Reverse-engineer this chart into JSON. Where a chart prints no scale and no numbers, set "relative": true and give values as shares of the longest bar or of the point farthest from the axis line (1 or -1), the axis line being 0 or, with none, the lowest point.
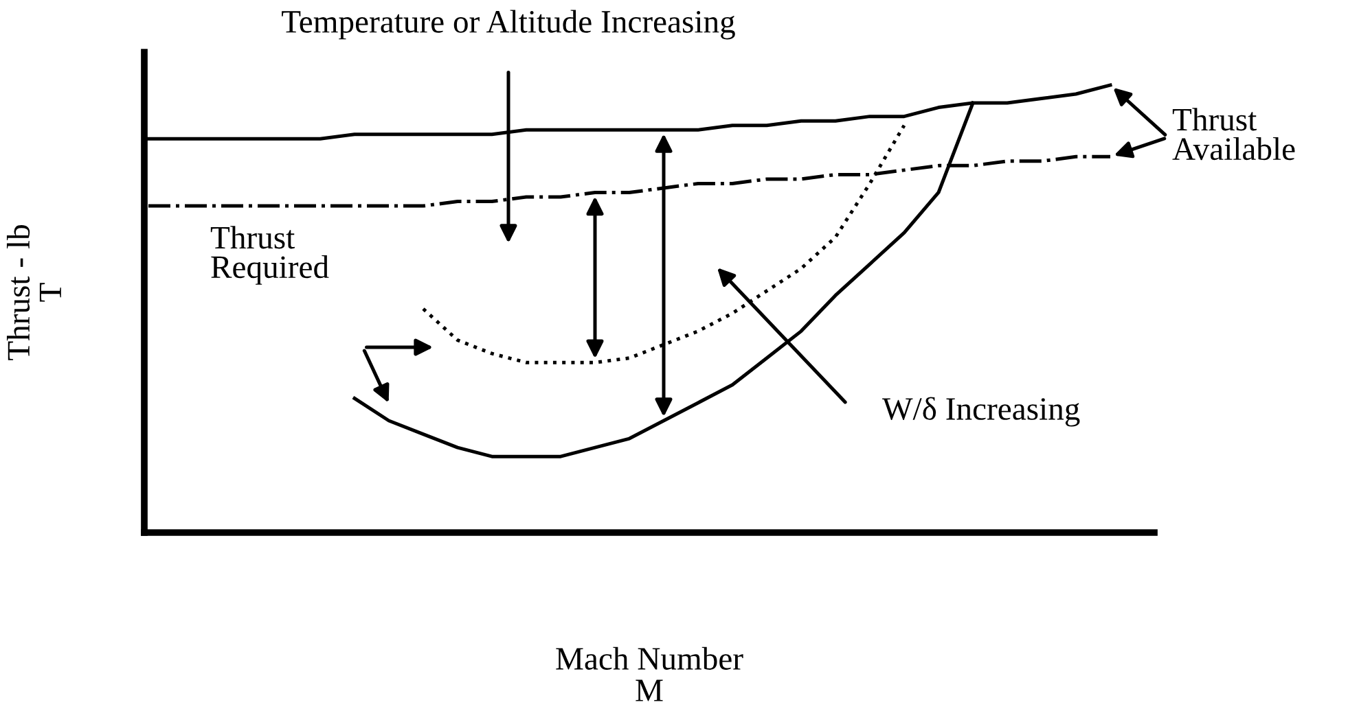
{
  "chart_data": {
    "type": "line",
    "relative": true,
    "xlabel": "Mach Number\nM",
    "ylabel": "Thrust - lb\nT",
    "tick_labels": false,
    "categories": [
      null,
      null,
      null,
      null,
      null,
      null,
      null,
      null,
      null,
      null,
      null,
      null,
      null,
      null,
      null,
      null,
      null,
      null,
      null,
      null,
      null,
      null,
      null,
      null,
      null,
      null,
      null,
      null,
      null
    ],
    "series": [
      {
        "color": "#000000",
        "line_style": "solid",
        "values": [
          0.88,
          0.88,
          0.88,
          0.88,
          0.88,
          0.88,
          0.89,
          0.89,
          0.89,
          0.89,
          0.89,
          0.9,
          0.9,
          0.9,
          0.9,
          0.9,
          0.9,
          0.91,
          0.91,
          0.92,
          0.92,
          0.93,
          0.93,
          0.95,
          0.96,
          0.96,
          0.97,
          0.98,
          1
        ]
      },
      {
        "color": "#000000",
        "line_style": "dashed",
        "values": [
          0.73,
          0.73,
          0.73,
          0.73,
          0.73,
          0.73,
          0.73,
          0.73,
          0.73,
          0.74,
          0.74,
          0.75,
          0.75,
          0.76,
          0.76,
          0.77,
          0.78,
          0.78,
          0.79,
          0.79,
          0.8,
          0.8,
          0.81,
          0.82,
          0.82,
          0.83,
          0.83,
          0.84,
          0.84
        ]
      },
      {
        "color": "#000000",
        "line_style": "solid",
        "values": [
          null,
          null,
          null,
          null,
          null,
          null,
          0.3,
          0.25,
          0.22,
          0.19,
          0.17,
          0.17,
          0.17,
          0.19,
          0.21,
          0.25,
          0.29,
          0.33,
          0.39,
          0.45,
          0.53,
          0.6,
          0.67,
          0.76,
          0.96,
          null,
          null,
          null,
          null
        ]
      },
      {
        "color": "#000000",
        "line_style": "dotted",
        "values": [
          null,
          null,
          null,
          null,
          null,
          null,
          null,
          null,
          0.5,
          0.43,
          0.4,
          0.38,
          0.38,
          0.38,
          0.39,
          0.42,
          0.45,
          0.49,
          0.54,
          0.59,
          0.66,
          0.78,
          0.91,
          null,
          null,
          null,
          null,
          null,
          null
        ]
      }
    ],
    "annotations": [
      "Temperature or Altitude Increasing",
      "Thrust Available",
      "Thrust Required",
      "W/δ Increasing"
    ]
  }
}
